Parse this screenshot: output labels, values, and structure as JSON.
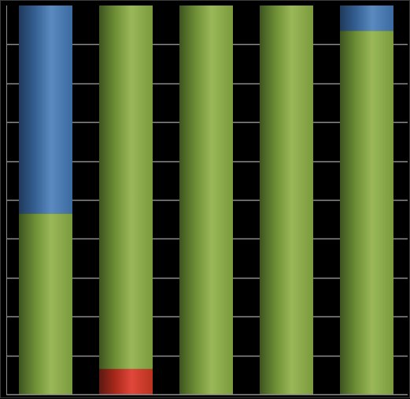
{
  "chart_data": {
    "type": "bar",
    "stacked": true,
    "percent_stacked": true,
    "categories": [
      "",
      "",
      "",
      "",
      ""
    ],
    "series": [
      {
        "values": [
          0.0,
          6.5,
          0.0,
          0.0,
          0.0
        ],
        "color": "#c0392b"
      },
      {
        "values": [
          46.5,
          93.5,
          100.0,
          100.0,
          93.5
        ],
        "color": "#7a9a3c"
      },
      {
        "values": [
          53.5,
          0.0,
          0.0,
          0.0,
          6.5
        ],
        "color": "#3b6aa0"
      }
    ],
    "ylim": [
      0,
      100
    ],
    "gridlines": 10,
    "grid": true,
    "legend": "none",
    "background": "#000000",
    "gridline_color": "#8c8c8c"
  }
}
